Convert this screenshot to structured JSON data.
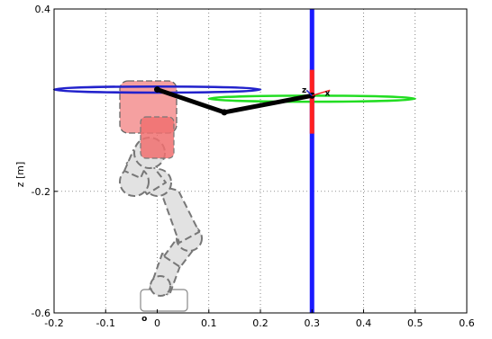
{
  "chart_data": {
    "type": "line",
    "title": "",
    "xlabel": "",
    "ylabel": "z [m]",
    "xlim": [
      -0.2,
      0.6
    ],
    "ylim": [
      -0.6,
      0.4
    ],
    "grid": true,
    "xticks": [
      "-0.2",
      "-0.1",
      "0",
      "0.1",
      "0.2",
      "0.3",
      "0.4",
      "0.5",
      "0.6"
    ],
    "yticks": [
      "-0.6",
      "-0.2",
      "0.4"
    ],
    "series": [
      {
        "role": "arm",
        "color": "#000000",
        "x": [
          0.0,
          0.13,
          0.3
        ],
        "z": [
          0.135,
          0.06,
          0.115
        ]
      },
      {
        "role": "vertical-line",
        "color": "#1a1aff",
        "x": [
          0.3,
          0.3
        ],
        "z": [
          -0.6,
          0.4
        ]
      },
      {
        "role": "vertical-line-highlight",
        "color": "#ff2020",
        "x": [
          0.3,
          0.3
        ],
        "z": [
          -0.01,
          0.2
        ]
      },
      {
        "role": "blue-ellipse",
        "color": "#2222cc",
        "center": [
          0.0,
          0.135
        ],
        "radii": [
          0.2,
          0.01
        ]
      },
      {
        "role": "green-ellipse",
        "color": "#22dd22",
        "center": [
          0.3,
          0.105
        ],
        "radii": [
          0.2,
          0.01
        ]
      }
    ],
    "annotations": [
      {
        "text": "z",
        "x": 0.285,
        "z": 0.125
      },
      {
        "text": "x",
        "x": 0.33,
        "z": 0.115
      },
      {
        "text": "o",
        "x": -0.025,
        "z": -0.6
      }
    ]
  }
}
